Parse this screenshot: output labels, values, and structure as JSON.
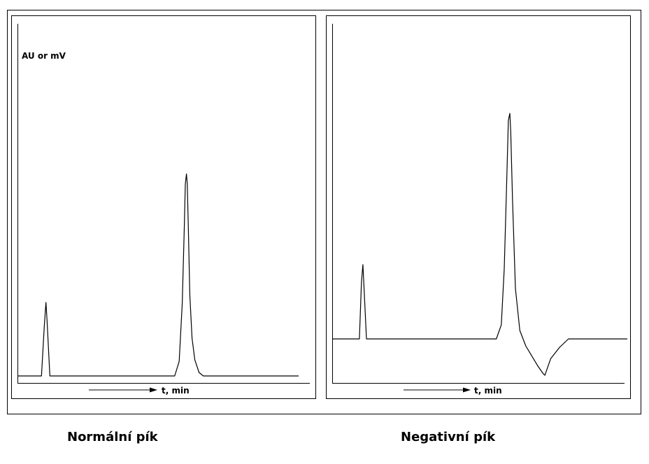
{
  "colors": {
    "ink": "#000000",
    "background": "#ffffff"
  },
  "chart_data": [
    {
      "type": "line",
      "title": "Normální pík",
      "ylabel": "AU or mV",
      "xlabel": "t, min",
      "grid": false,
      "legend": "none",
      "xlim": [
        0,
        100
      ],
      "ylim": [
        -4,
        100
      ],
      "series": [
        {
          "x": [
            0,
            8.3,
            9.3,
            9.9,
            10.3,
            11.3,
            12.2,
            55.8,
            57.4,
            58.5,
            59.2,
            59.6,
            60.0,
            60.3,
            60.7,
            61.2,
            62.0,
            63.0,
            64.5,
            66.0,
            100
          ],
          "y": [
            0,
            0,
            17,
            25.3,
            19,
            0,
            0,
            0,
            5,
            25,
            50,
            66,
            69.5,
            66,
            50,
            28,
            13,
            5.5,
            1.2,
            0,
            0
          ]
        }
      ]
    },
    {
      "type": "line",
      "title": "Negativní pík",
      "ylabel": "",
      "xlabel": "t, min",
      "grid": false,
      "legend": "none",
      "xlim": [
        0,
        100
      ],
      "ylim": [
        -18,
        100
      ],
      "series": [
        {
          "x": [
            0,
            9.0,
            9.7,
            10.2,
            10.5,
            11.4,
            12.2,
            55.5,
            57.2,
            58.2,
            59.0,
            59.6,
            60.1,
            60.4,
            61.0,
            62.0,
            63.5,
            65.5,
            67.5,
            69.5,
            71.5,
            72.0,
            74.0,
            77.0,
            80.0,
            100
          ],
          "y": [
            0,
            0,
            20,
            26.5,
            20,
            0,
            0,
            0,
            5,
            25,
            55,
            78,
            80.5,
            74,
            50,
            18,
            3,
            -2.5,
            -6,
            -9.5,
            -12.5,
            -13,
            -7,
            -3,
            0,
            0
          ]
        }
      ]
    }
  ],
  "captions": {
    "left": "Normální pík",
    "right": "Negativní pík"
  }
}
